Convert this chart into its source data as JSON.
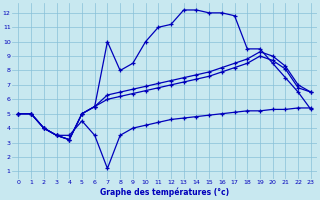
{
  "bg_color": "#c8e8f0",
  "grid_color": "#88c0d8",
  "line_color": "#0000bb",
  "xlabel": "Graphe des températures (°c)",
  "xlim": [
    -0.5,
    23.5
  ],
  "ylim": [
    0.5,
    12.7
  ],
  "xticks": [
    0,
    1,
    2,
    3,
    4,
    5,
    6,
    7,
    8,
    9,
    10,
    11,
    12,
    13,
    14,
    15,
    16,
    17,
    18,
    19,
    20,
    21,
    22,
    23
  ],
  "yticks": [
    1,
    2,
    3,
    4,
    5,
    6,
    7,
    8,
    9,
    10,
    11,
    12
  ],
  "curves": [
    {
      "x": [
        0,
        1,
        2,
        3,
        4,
        5,
        6,
        7,
        8,
        9,
        10,
        11,
        12,
        13,
        14,
        15,
        16,
        17,
        18,
        19,
        20,
        21,
        22,
        23
      ],
      "y": [
        5.0,
        5.0,
        4.0,
        3.5,
        3.2,
        5.0,
        5.5,
        10.0,
        8.0,
        8.5,
        10.0,
        11.0,
        11.2,
        12.2,
        12.2,
        12.0,
        12.0,
        11.8,
        9.5,
        9.5,
        8.5,
        7.5,
        6.5,
        5.3
      ]
    },
    {
      "x": [
        0,
        1,
        2,
        3,
        4,
        5,
        6,
        7,
        8,
        9,
        10,
        11,
        12,
        13,
        14,
        15,
        16,
        17,
        18,
        19,
        20,
        21,
        22,
        23
      ],
      "y": [
        5.0,
        5.0,
        4.0,
        3.5,
        3.2,
        5.0,
        5.5,
        6.3,
        6.5,
        6.7,
        6.9,
        7.1,
        7.3,
        7.5,
        7.7,
        7.9,
        8.2,
        8.5,
        8.8,
        9.3,
        9.0,
        8.3,
        7.0,
        6.5
      ]
    },
    {
      "x": [
        0,
        1,
        2,
        3,
        4,
        5,
        6,
        7,
        8,
        9,
        10,
        11,
        12,
        13,
        14,
        15,
        16,
        17,
        18,
        19,
        20,
        21,
        22,
        23
      ],
      "y": [
        5.0,
        5.0,
        4.0,
        3.5,
        3.2,
        5.0,
        5.5,
        6.0,
        6.2,
        6.4,
        6.6,
        6.8,
        7.0,
        7.2,
        7.4,
        7.6,
        7.9,
        8.2,
        8.5,
        9.0,
        8.7,
        8.1,
        6.8,
        6.5
      ]
    },
    {
      "x": [
        0,
        1,
        2,
        3,
        4,
        5,
        6,
        7,
        8,
        9,
        10,
        11,
        12,
        13,
        14,
        15,
        16,
        17,
        18,
        19,
        20,
        21,
        22,
        23
      ],
      "y": [
        5.0,
        5.0,
        4.0,
        3.5,
        3.5,
        4.5,
        3.5,
        1.2,
        3.5,
        4.0,
        4.2,
        4.4,
        4.6,
        4.7,
        4.8,
        4.9,
        5.0,
        5.1,
        5.2,
        5.2,
        5.3,
        5.3,
        5.4,
        5.4
      ]
    }
  ]
}
